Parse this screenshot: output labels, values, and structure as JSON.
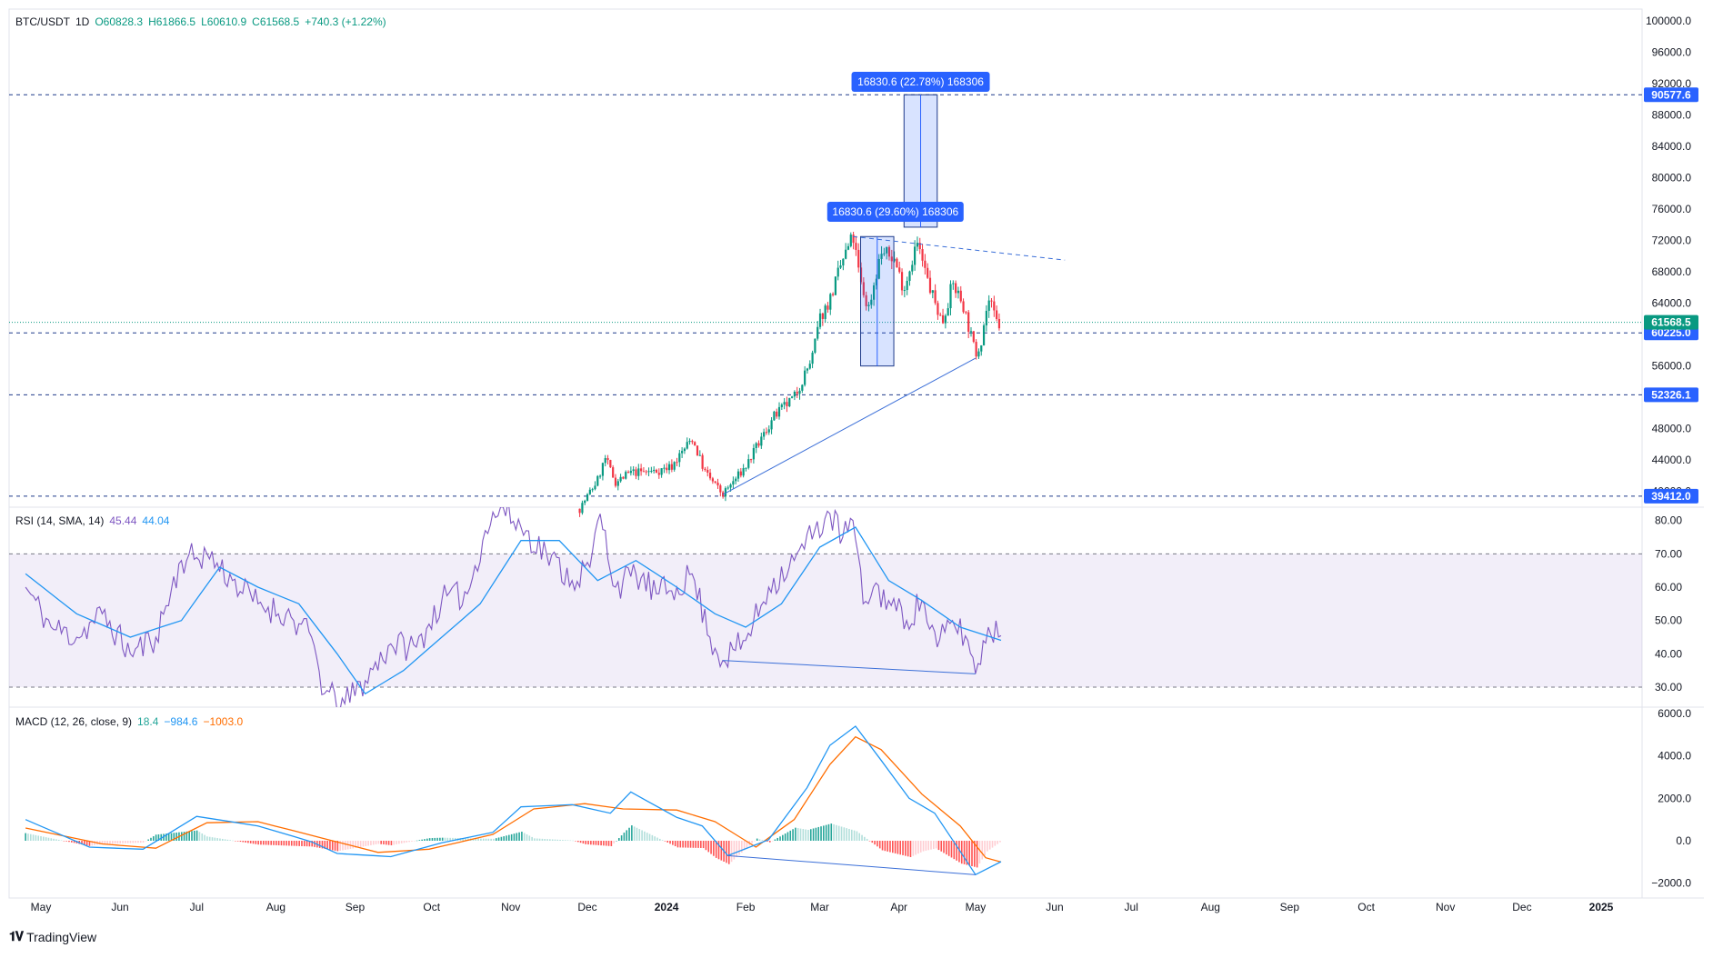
{
  "header": {
    "symbol": "BTC/USDT",
    "interval": "1D",
    "open_label": "O60828.3",
    "high_label": "H61866.5",
    "low_label": "L60610.9",
    "close_label": "C61568.5",
    "change_label": "+740.3 (+1.22%)"
  },
  "rsi_legend": {
    "name": "RSI (14, SMA, 14)",
    "rsi_value": "45.44",
    "sma_value": "44.04"
  },
  "macd_legend": {
    "name": "MACD (12, 26, close, 9)",
    "hist_value": "18.4",
    "macd_value": "−984.6",
    "signal_value": "−1003.0"
  },
  "brand": {
    "name": "TradingView"
  },
  "colors": {
    "up": "#089981",
    "down": "#f23645",
    "rsi": "#7e57c2",
    "rsi_sma": "#2196f3",
    "macd": "#2196f3",
    "signal": "#ff6d00",
    "accent": "#2962ff"
  },
  "chart_data": [
    {
      "type": "candlestick",
      "title": "BTC/USDT, 1D",
      "x_ticks": [
        "May",
        "Jun",
        "Jul",
        "Aug",
        "Sep",
        "Oct",
        "Nov",
        "Dec",
        "2024",
        "Feb",
        "Mar",
        "Apr",
        "May",
        "Jun",
        "Jul",
        "Aug",
        "Sep",
        "Oct",
        "Nov",
        "Dec",
        "2025"
      ],
      "y_ticks": [
        "100000.0",
        "96000.0",
        "92000.0",
        "88000.0",
        "84000.0",
        "80000.0",
        "76000.0",
        "72000.0",
        "68000.0",
        "64000.0",
        "56000.0",
        "48000.0",
        "44000.0",
        "40000.0"
      ],
      "ylim": [
        38000,
        101500
      ],
      "last_price": {
        "label": "61568.5",
        "value": 61568.5
      },
      "price_levels": [
        {
          "label": "90577.6",
          "value": 90577.6
        },
        {
          "label": "60225.0",
          "value": 60225.0
        },
        {
          "label": "52326.1",
          "value": 52326.1
        },
        {
          "label": "39412.0",
          "value": 39412.0
        }
      ],
      "measure_labels": [
        "16830.6 (22.78%) 168306",
        "16830.6 (29.60%) 168306"
      ],
      "path": [
        [
          "2023-11-28",
          37800
        ],
        [
          "2023-12-05",
          41500
        ],
        [
          "2023-12-08",
          44200
        ],
        [
          "2023-12-12",
          41200
        ],
        [
          "2023-12-18",
          42400
        ],
        [
          "2023-12-28",
          42600
        ],
        [
          "2024-01-03",
          43200
        ],
        [
          "2024-01-11",
          46800
        ],
        [
          "2024-01-16",
          42500
        ],
        [
          "2024-01-23",
          39600
        ],
        [
          "2024-02-01",
          43200
        ],
        [
          "2024-02-12",
          49500
        ],
        [
          "2024-02-20",
          52000
        ],
        [
          "2024-02-27",
          57000
        ],
        [
          "2024-03-01",
          62000
        ],
        [
          "2024-03-05",
          64500
        ],
        [
          "2024-03-10",
          69500
        ],
        [
          "2024-03-14",
          72500
        ],
        [
          "2024-03-17",
          66500
        ],
        [
          "2024-03-20",
          63200
        ],
        [
          "2024-03-25",
          70500
        ],
        [
          "2024-03-30",
          69800
        ],
        [
          "2024-04-03",
          65800
        ],
        [
          "2024-04-08",
          71800
        ],
        [
          "2024-04-13",
          66000
        ],
        [
          "2024-04-18",
          61500
        ],
        [
          "2024-04-22",
          66500
        ],
        [
          "2024-04-26",
          64000
        ],
        [
          "2024-05-01",
          57500
        ],
        [
          "2024-05-03",
          59000
        ],
        [
          "2024-05-06",
          64500
        ],
        [
          "2024-05-10",
          61000
        ],
        [
          "2024-05-11",
          61568.5
        ]
      ],
      "annotations": [
        {
          "type": "trendline",
          "from": [
            "2024-01-23",
            39600
          ],
          "to": [
            "2024-05-01",
            57000
          ]
        },
        {
          "type": "trendline",
          "from": [
            "2024-03-14",
            72500
          ],
          "to": [
            "2024-06-05",
            69500
          ]
        }
      ]
    },
    {
      "type": "line",
      "title": "RSI (14, SMA, 14)",
      "y_ticks": [
        "80.00",
        "70.00",
        "60.00",
        "50.00",
        "40.00",
        "30.00"
      ],
      "ylim": [
        24,
        84
      ],
      "band": [
        30,
        70
      ],
      "series": [
        {
          "name": "RSI",
          "points": [
            [
              "2023-04-25",
              60
            ],
            [
              "2023-05-05",
              48
            ],
            [
              "2023-05-15",
              45
            ],
            [
              "2023-05-25",
              52
            ],
            [
              "2023-06-05",
              40
            ],
            [
              "2023-06-15",
              45
            ],
            [
              "2023-06-25",
              68
            ],
            [
              "2023-07-05",
              70
            ],
            [
              "2023-07-15",
              62
            ],
            [
              "2023-07-25",
              55
            ],
            [
              "2023-08-05",
              52
            ],
            [
              "2023-08-15",
              45
            ],
            [
              "2023-08-20",
              28
            ],
            [
              "2023-08-28",
              25
            ],
            [
              "2023-09-05",
              32
            ],
            [
              "2023-09-15",
              43
            ],
            [
              "2023-09-25",
              42
            ],
            [
              "2023-10-05",
              56
            ],
            [
              "2023-10-15",
              58
            ],
            [
              "2023-10-22",
              77
            ],
            [
              "2023-10-28",
              84
            ],
            [
              "2023-11-05",
              78
            ],
            [
              "2023-11-15",
              70
            ],
            [
              "2023-11-25",
              62
            ],
            [
              "2023-12-02",
              66
            ],
            [
              "2023-12-06",
              82
            ],
            [
              "2023-12-12",
              60
            ],
            [
              "2023-12-20",
              64
            ],
            [
              "2023-12-28",
              58
            ],
            [
              "2024-01-05",
              60
            ],
            [
              "2024-01-11",
              64
            ],
            [
              "2024-01-18",
              45
            ],
            [
              "2024-01-23",
              38
            ],
            [
              "2024-02-01",
              44
            ],
            [
              "2024-02-10",
              60
            ],
            [
              "2024-02-20",
              68
            ],
            [
              "2024-02-28",
              77
            ],
            [
              "2024-03-05",
              82
            ],
            [
              "2024-03-10",
              75
            ],
            [
              "2024-03-14",
              80
            ],
            [
              "2024-03-18",
              55
            ],
            [
              "2024-03-22",
              60
            ],
            [
              "2024-03-28",
              56
            ],
            [
              "2024-04-04",
              50
            ],
            [
              "2024-04-10",
              56
            ],
            [
              "2024-04-16",
              42
            ],
            [
              "2024-04-22",
              50
            ],
            [
              "2024-04-28",
              44
            ],
            [
              "2024-05-01",
              34
            ],
            [
              "2024-05-06",
              48
            ],
            [
              "2024-05-11",
              45.44
            ]
          ]
        },
        {
          "name": "RSI-based MA",
          "points": [
            [
              "2023-04-25",
              64
            ],
            [
              "2023-05-15",
              52
            ],
            [
              "2023-06-05",
              45
            ],
            [
              "2023-06-25",
              50
            ],
            [
              "2023-07-10",
              66
            ],
            [
              "2023-07-25",
              60
            ],
            [
              "2023-08-10",
              55
            ],
            [
              "2023-08-25",
              40
            ],
            [
              "2023-09-05",
              28
            ],
            [
              "2023-09-20",
              35
            ],
            [
              "2023-10-05",
              45
            ],
            [
              "2023-10-20",
              55
            ],
            [
              "2023-11-05",
              74
            ],
            [
              "2023-11-20",
              74
            ],
            [
              "2023-12-05",
              62
            ],
            [
              "2023-12-20",
              68
            ],
            [
              "2024-01-05",
              60
            ],
            [
              "2024-01-20",
              52
            ],
            [
              "2024-02-01",
              48
            ],
            [
              "2024-02-15",
              55
            ],
            [
              "2024-03-01",
              72
            ],
            [
              "2024-03-15",
              78
            ],
            [
              "2024-03-28",
              62
            ],
            [
              "2024-04-10",
              56
            ],
            [
              "2024-04-25",
              48
            ],
            [
              "2024-05-11",
              44.04
            ]
          ]
        }
      ],
      "annotations": [
        {
          "type": "trendline",
          "from": [
            "2024-01-23",
            38
          ],
          "to": [
            "2024-05-01",
            34
          ]
        }
      ]
    },
    {
      "type": "line",
      "title": "MACD (12, 26, close, 9)",
      "y_ticks": [
        "6000.0",
        "4000.0",
        "2000.0",
        "0.0",
        "−2000.0"
      ],
      "ylim": [
        -2700,
        6300
      ],
      "series": [
        {
          "name": "MACD",
          "points": [
            [
              "2023-04-25",
              1000
            ],
            [
              "2023-05-20",
              -300
            ],
            [
              "2023-06-10",
              -400
            ],
            [
              "2023-07-01",
              1150
            ],
            [
              "2023-07-25",
              700
            ],
            [
              "2023-08-15",
              -50
            ],
            [
              "2023-08-25",
              -600
            ],
            [
              "2023-09-15",
              -750
            ],
            [
              "2023-10-05",
              -100
            ],
            [
              "2023-10-25",
              400
            ],
            [
              "2023-11-05",
              1600
            ],
            [
              "2023-11-25",
              1700
            ],
            [
              "2023-12-10",
              1300
            ],
            [
              "2023-12-18",
              2300
            ],
            [
              "2024-01-05",
              1100
            ],
            [
              "2024-01-15",
              700
            ],
            [
              "2024-01-25",
              -700
            ],
            [
              "2024-02-10",
              50
            ],
            [
              "2024-02-25",
              2500
            ],
            [
              "2024-03-05",
              4500
            ],
            [
              "2024-03-15",
              5400
            ],
            [
              "2024-03-25",
              3800
            ],
            [
              "2024-04-05",
              2000
            ],
            [
              "2024-04-15",
              1300
            ],
            [
              "2024-04-25",
              -500
            ],
            [
              "2024-05-01",
              -1600
            ],
            [
              "2024-05-11",
              -984.6
            ]
          ]
        },
        {
          "name": "Signal",
          "points": [
            [
              "2023-04-25",
              600
            ],
            [
              "2023-05-25",
              -150
            ],
            [
              "2023-06-15",
              -350
            ],
            [
              "2023-07-05",
              850
            ],
            [
              "2023-07-25",
              900
            ],
            [
              "2023-08-20",
              100
            ],
            [
              "2023-09-10",
              -550
            ],
            [
              "2023-09-30",
              -400
            ],
            [
              "2023-10-25",
              300
            ],
            [
              "2023-11-10",
              1500
            ],
            [
              "2023-11-30",
              1750
            ],
            [
              "2023-12-15",
              1500
            ],
            [
              "2024-01-05",
              1450
            ],
            [
              "2024-01-20",
              900
            ],
            [
              "2024-02-05",
              -300
            ],
            [
              "2024-02-20",
              1000
            ],
            [
              "2024-03-05",
              3600
            ],
            [
              "2024-03-15",
              4900
            ],
            [
              "2024-03-25",
              4300
            ],
            [
              "2024-04-10",
              2200
            ],
            [
              "2024-04-25",
              700
            ],
            [
              "2024-05-05",
              -800
            ],
            [
              "2024-05-11",
              -1003.0
            ]
          ]
        }
      ],
      "annotations": [
        {
          "type": "trendline",
          "from": [
            "2024-01-25",
            -700
          ],
          "to": [
            "2024-05-01",
            -1600
          ]
        }
      ]
    }
  ]
}
